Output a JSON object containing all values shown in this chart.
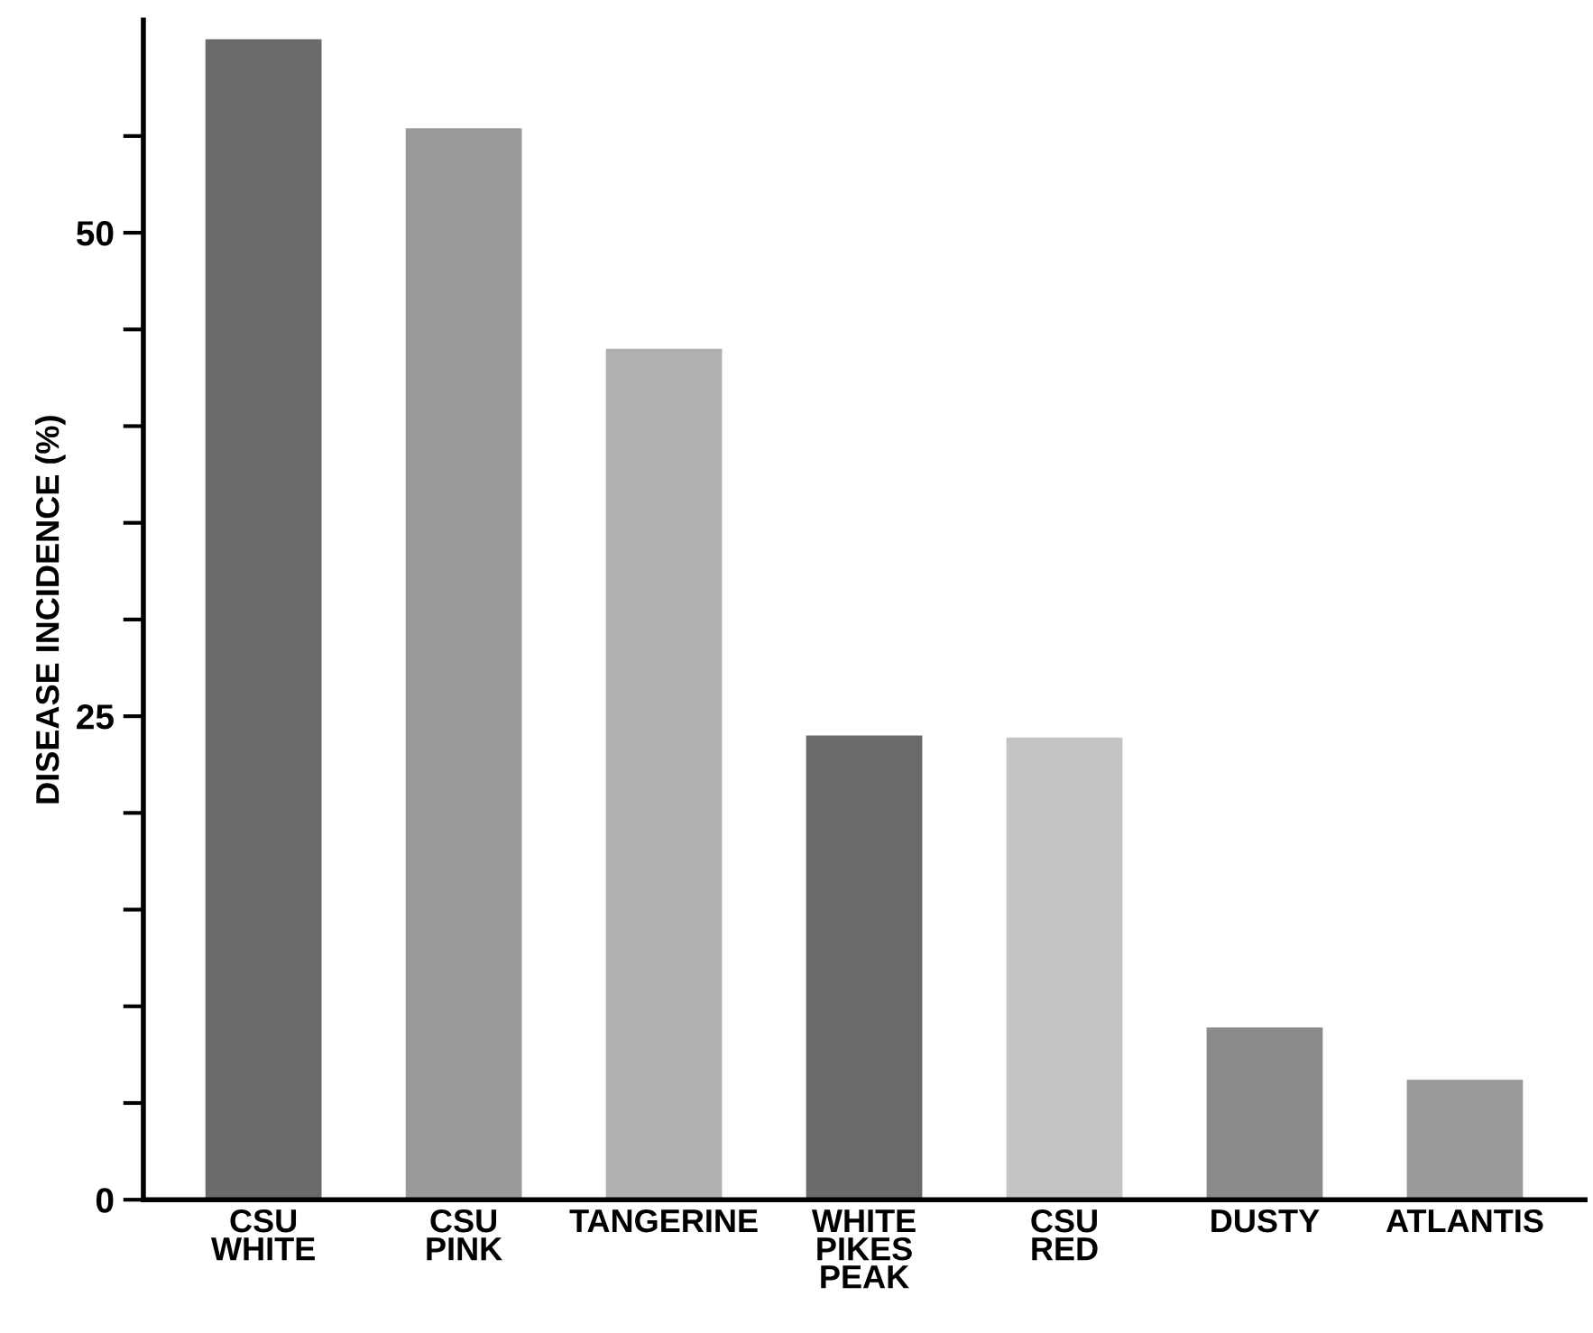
{
  "chart_data": {
    "type": "bar",
    "ylabel": "DISEASE INCIDENCE (%)",
    "categories": [
      "CSU\nWHITE",
      "CSU\nPINK",
      "TANGERINE",
      "WHITE\nPIKES\nPEAK",
      "CSU\nRED",
      "DUSTY",
      "ATLANTIS"
    ],
    "values": [
      60,
      55.4,
      44,
      24,
      23.9,
      8.9,
      6.2
    ],
    "colors": [
      "#6a6a6a",
      "#9a9a9a",
      "#b0b0b0",
      "#6a6a6a",
      "#c4c4c4",
      "#8a8a8a",
      "#9a9a9a"
    ],
    "ylim": [
      0,
      61
    ],
    "yticks": [
      0,
      {
        "value": 5,
        "label": null
      },
      {
        "value": 10,
        "label": null
      },
      {
        "value": 15,
        "label": null
      },
      {
        "value": 20,
        "label": null
      },
      25,
      {
        "value": 30,
        "label": null
      },
      {
        "value": 35,
        "label": null
      },
      {
        "value": 40,
        "label": null
      },
      {
        "value": 45,
        "label": null
      },
      50,
      {
        "value": 55,
        "label": null
      }
    ],
    "grid": false
  }
}
